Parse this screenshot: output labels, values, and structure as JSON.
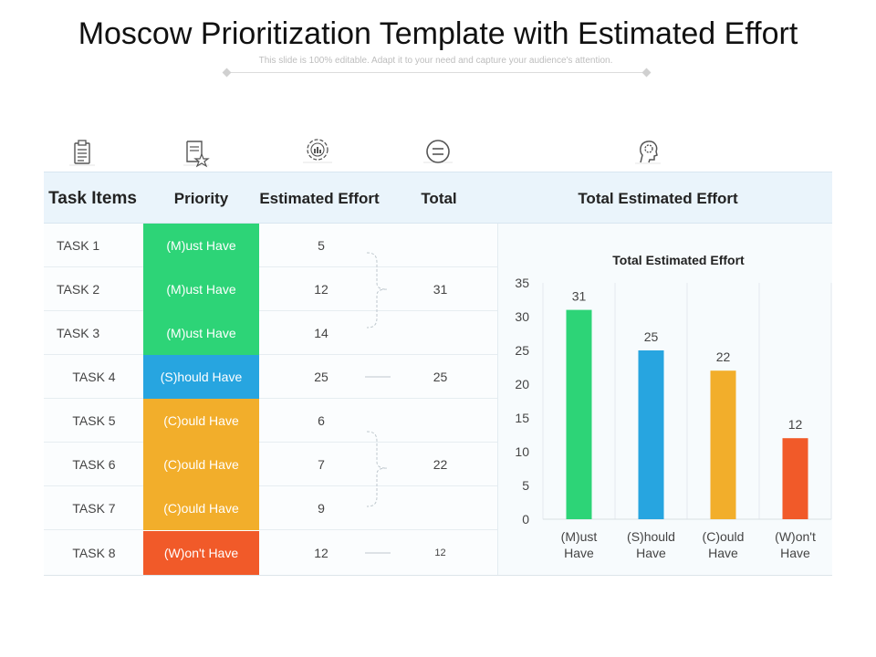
{
  "header": {
    "title": "Moscow Prioritization Template with Estimated Effort",
    "subtitle": "This slide is 100% editable. Adapt it to your need and capture your audience's attention."
  },
  "columns": {
    "task_items": "Task Items",
    "priority": "Priority",
    "estimated_effort": "Estimated Effort",
    "total": "Total",
    "total_estimated_effort": "Total Estimated Effort"
  },
  "icons": [
    "clipboard-icon",
    "document-star-icon",
    "gear-chart-icon",
    "equals-circle-icon",
    "head-gear-icon"
  ],
  "colors": {
    "must": "#2dd477",
    "should": "#27a5e0",
    "could": "#f2ae2b",
    "wont": "#f15a29"
  },
  "tasks": [
    {
      "task": "TASK 1",
      "priority": "(M)ust Have",
      "effort": "5"
    },
    {
      "task": "TASK 2",
      "priority": "(M)ust Have",
      "effort": "12"
    },
    {
      "task": "TASK 3",
      "priority": "(M)ust Have",
      "effort": "14"
    },
    {
      "task": "TASK 4",
      "priority": "(S)hould Have",
      "effort": "25"
    },
    {
      "task": "TASK 5",
      "priority": "(C)ould Have",
      "effort": "6"
    },
    {
      "task": "TASK 6",
      "priority": "(C)ould Have",
      "effort": "7"
    },
    {
      "task": "TASK 7",
      "priority": "(C)ould Have",
      "effort": "9"
    },
    {
      "task": "TASK 8",
      "priority": "(W)on't Have",
      "effort": "12"
    }
  ],
  "totals": {
    "must": "31",
    "should": "25",
    "could": "22",
    "wont": "12"
  },
  "chart_data": {
    "type": "bar",
    "title": "Total Estimated Effort",
    "categories": [
      "(M)ust Have",
      "(S)hould Have",
      "(C)ould Have",
      "(W)on't Have"
    ],
    "category_lines": [
      [
        "(M)ust",
        "Have"
      ],
      [
        "(S)hould",
        "Have"
      ],
      [
        "(C)ould",
        "Have"
      ],
      [
        "(W)on't",
        "Have"
      ]
    ],
    "values": [
      31,
      25,
      22,
      12
    ],
    "ylim": [
      0,
      35
    ],
    "yticks": [
      0,
      5,
      10,
      15,
      20,
      25,
      30,
      35
    ],
    "colors": [
      "#2dd477",
      "#27a5e0",
      "#f2ae2b",
      "#f15a29"
    ],
    "grid": "vertical",
    "data_labels": true
  }
}
